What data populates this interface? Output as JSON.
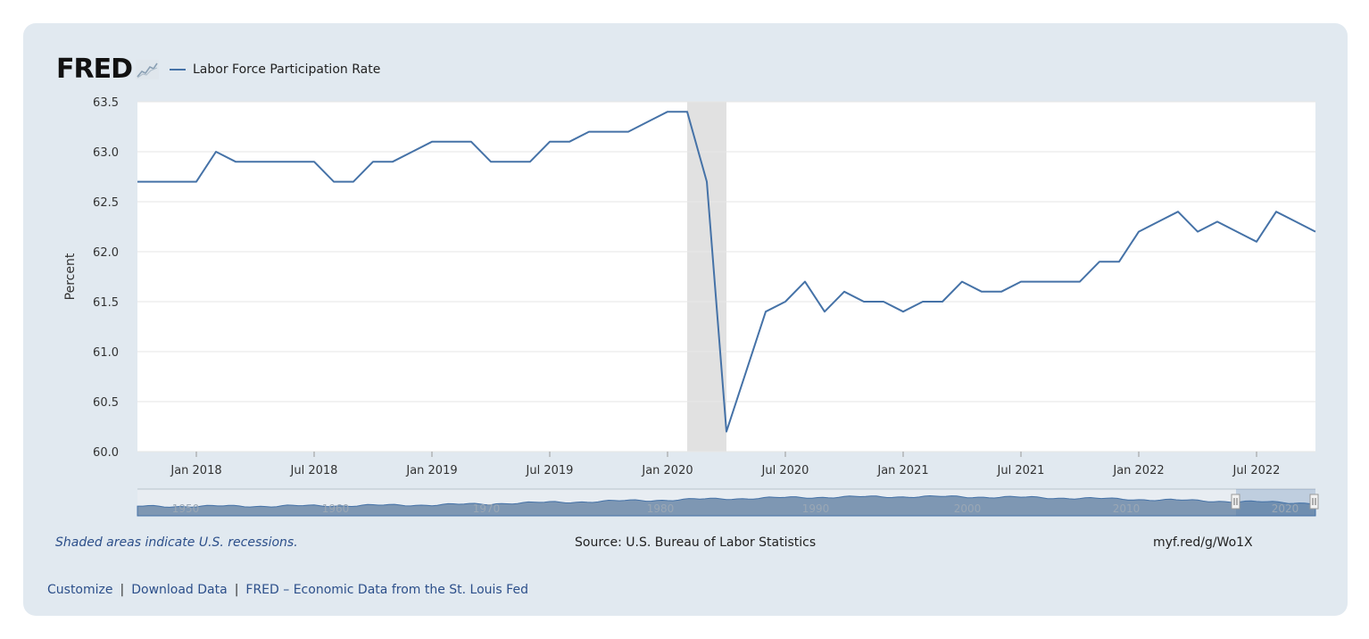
{
  "header": {
    "logo_text": "FRED",
    "logo_icon": "line-chart-icon",
    "legend_label": "Labor Force Participation Rate"
  },
  "colors": {
    "series": "#4572a7",
    "recession": "#e1e1e1",
    "card": "#e1e9f0"
  },
  "chart_data": {
    "type": "line",
    "title": "",
    "xlabel": "",
    "ylabel": "Percent",
    "ylim": [
      60.0,
      63.5
    ],
    "yticks": [
      "60.0",
      "60.5",
      "61.0",
      "61.5",
      "62.0",
      "62.5",
      "63.0",
      "63.5"
    ],
    "xticks": [
      "Jan 2018",
      "Jul 2018",
      "Jan 2019",
      "Jul 2019",
      "Jan 2020",
      "Jul 2020",
      "Jan 2021",
      "Jul 2021",
      "Jan 2022",
      "Jul 2022"
    ],
    "grid": true,
    "legend_position": "top-left",
    "recessions": [
      {
        "start": "2020-02",
        "end": "2020-04"
      }
    ],
    "series": [
      {
        "name": "Labor Force Participation Rate",
        "x": [
          "2017-10",
          "2017-11",
          "2017-12",
          "2018-01",
          "2018-02",
          "2018-03",
          "2018-04",
          "2018-05",
          "2018-06",
          "2018-07",
          "2018-08",
          "2018-09",
          "2018-10",
          "2018-11",
          "2018-12",
          "2019-01",
          "2019-02",
          "2019-03",
          "2019-04",
          "2019-05",
          "2019-06",
          "2019-07",
          "2019-08",
          "2019-09",
          "2019-10",
          "2019-11",
          "2019-12",
          "2020-01",
          "2020-02",
          "2020-03",
          "2020-04",
          "2020-05",
          "2020-06",
          "2020-07",
          "2020-08",
          "2020-09",
          "2020-10",
          "2020-11",
          "2020-12",
          "2021-01",
          "2021-02",
          "2021-03",
          "2021-04",
          "2021-05",
          "2021-06",
          "2021-07",
          "2021-08",
          "2021-09",
          "2021-10",
          "2021-11",
          "2021-12",
          "2022-01",
          "2022-02",
          "2022-03",
          "2022-04",
          "2022-05",
          "2022-06",
          "2022-07",
          "2022-08",
          "2022-09",
          "2022-10"
        ],
        "values": [
          62.7,
          62.7,
          62.7,
          62.7,
          63.0,
          62.9,
          62.9,
          62.9,
          62.9,
          62.9,
          62.7,
          62.7,
          62.9,
          62.9,
          63.0,
          63.1,
          63.1,
          63.1,
          62.9,
          62.9,
          62.9,
          63.1,
          63.1,
          63.2,
          63.2,
          63.2,
          63.3,
          63.4,
          63.4,
          62.7,
          60.2,
          60.8,
          61.4,
          61.5,
          61.7,
          61.4,
          61.6,
          61.5,
          61.5,
          61.4,
          61.5,
          61.5,
          61.7,
          61.6,
          61.6,
          61.7,
          61.7,
          61.7,
          61.7,
          61.9,
          61.9,
          62.2,
          62.3,
          62.4,
          62.2,
          62.3,
          62.2,
          62.1,
          62.4,
          62.3,
          62.2
        ]
      }
    ]
  },
  "navigator": {
    "labels": [
      "1950",
      "1960",
      "1970",
      "1980",
      "1990",
      "2000",
      "2010",
      "2020"
    ]
  },
  "footer": {
    "recession_note": "Shaded areas indicate U.S. recessions.",
    "source": "Source: U.S. Bureau of Labor Statistics",
    "shortlink": "myf.red/g/Wo1X"
  },
  "links": {
    "customize": "Customize",
    "sep1": "|",
    "download": "Download Data",
    "sep2": "|",
    "fred_home": "FRED – Economic Data from the St. Louis Fed"
  }
}
